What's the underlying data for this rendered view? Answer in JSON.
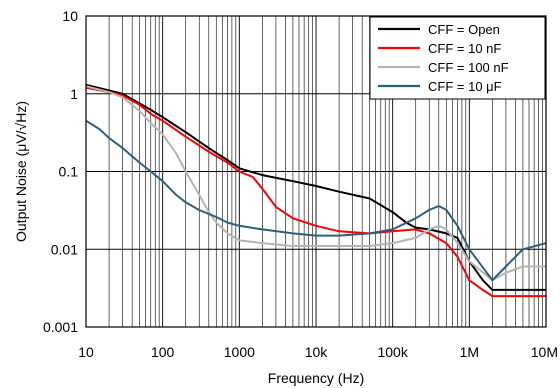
{
  "chart_data": {
    "type": "line",
    "xlabel": "Frequency (Hz)",
    "ylabel": "Output Noise  (μV/√Hz)",
    "xscale": "log",
    "yscale": "log",
    "xlim": [
      10,
      10000000
    ],
    "ylim": [
      0.001,
      10
    ],
    "grid": true,
    "legend_position": "top-right",
    "x_tick_labels": [
      "10",
      "100",
      "1000",
      "10k",
      "100k",
      "1M",
      "10M"
    ],
    "y_tick_labels": [
      "0.001",
      "0.01",
      "0.1",
      "1",
      "10"
    ],
    "series": [
      {
        "name": "CFF = Open",
        "color": "#000000",
        "x": [
          10,
          20,
          30,
          50,
          70,
          100,
          200,
          400,
          700,
          1000,
          2000,
          5000,
          10000,
          20000,
          50000,
          100000,
          150000,
          200000,
          300000,
          500000,
          700000,
          1000000,
          1500000,
          2000000,
          3000000,
          5000000,
          10000000
        ],
        "y": [
          1.3,
          1.1,
          1.0,
          0.75,
          0.62,
          0.5,
          0.32,
          0.2,
          0.14,
          0.11,
          0.09,
          0.075,
          0.065,
          0.055,
          0.045,
          0.03,
          0.022,
          0.019,
          0.018,
          0.016,
          0.014,
          0.007,
          0.004,
          0.003,
          0.003,
          0.003,
          0.003
        ]
      },
      {
        "name": "CFF = 10 nF",
        "color": "#ff0000",
        "x": [
          10,
          20,
          30,
          50,
          70,
          100,
          200,
          400,
          700,
          1000,
          1500,
          2000,
          3000,
          5000,
          10000,
          20000,
          50000,
          100000,
          200000,
          300000,
          500000,
          700000,
          1000000,
          1500000,
          2000000,
          3000000,
          5000000,
          10000000
        ],
        "y": [
          1.2,
          1.05,
          0.95,
          0.72,
          0.55,
          0.45,
          0.28,
          0.18,
          0.13,
          0.1,
          0.085,
          0.06,
          0.035,
          0.025,
          0.02,
          0.017,
          0.016,
          0.017,
          0.018,
          0.016,
          0.012,
          0.008,
          0.004,
          0.003,
          0.0025,
          0.0025,
          0.0025,
          0.0025
        ]
      },
      {
        "name": "CFF = 100 nF",
        "color": "#b4b4b4",
        "x": [
          10,
          20,
          30,
          50,
          70,
          100,
          150,
          200,
          300,
          400,
          500,
          700,
          1000,
          2000,
          5000,
          10000,
          20000,
          50000,
          100000,
          200000,
          300000,
          400000,
          500000,
          700000,
          1000000,
          2000000,
          3000000,
          5000000,
          10000000
        ],
        "y": [
          1.25,
          1.05,
          0.9,
          0.6,
          0.42,
          0.3,
          0.17,
          0.1,
          0.05,
          0.03,
          0.022,
          0.016,
          0.013,
          0.012,
          0.011,
          0.011,
          0.011,
          0.011,
          0.012,
          0.014,
          0.018,
          0.02,
          0.018,
          0.012,
          0.007,
          0.004,
          0.005,
          0.006,
          0.006
        ]
      },
      {
        "name": "CFF = 10 μF",
        "color": "#2f5f7a",
        "x": [
          10,
          15,
          20,
          30,
          50,
          70,
          100,
          150,
          200,
          300,
          500,
          700,
          1000,
          2000,
          5000,
          10000,
          20000,
          50000,
          100000,
          200000,
          300000,
          400000,
          500000,
          700000,
          1000000,
          2000000,
          3000000,
          5000000,
          10000000
        ],
        "y": [
          0.45,
          0.35,
          0.27,
          0.2,
          0.13,
          0.1,
          0.075,
          0.05,
          0.04,
          0.032,
          0.026,
          0.022,
          0.02,
          0.018,
          0.016,
          0.015,
          0.015,
          0.016,
          0.018,
          0.025,
          0.032,
          0.036,
          0.032,
          0.02,
          0.01,
          0.004,
          0.006,
          0.01,
          0.012
        ]
      }
    ]
  }
}
